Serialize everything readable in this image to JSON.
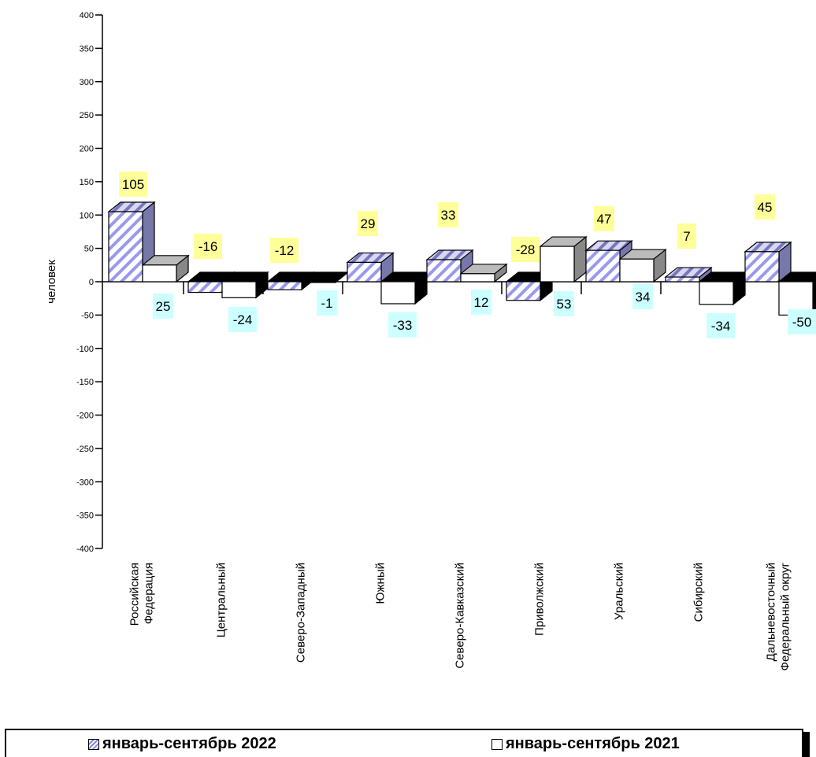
{
  "chart_data": {
    "type": "bar",
    "ylabel": "человек",
    "ylim": [
      -400,
      400
    ],
    "yticks": [
      "400",
      "350",
      "300",
      "250",
      "200",
      "150",
      "100",
      "50",
      "0",
      "-50",
      "-100",
      "-150",
      "-200",
      "-250",
      "-300",
      "-350",
      "-400"
    ],
    "categories": [
      [
        "Российская",
        "Федерация"
      ],
      [
        "Центральный"
      ],
      [
        "Северо-Западный"
      ],
      [
        "Южный"
      ],
      [
        "Северо-Кавказский"
      ],
      [
        "Приволжский"
      ],
      [
        "Уральский"
      ],
      [
        "Сибирский"
      ],
      [
        "Дальневосточный",
        "Федеральный округ"
      ]
    ],
    "series": [
      {
        "name": "январь-сентябрь 2022",
        "values": [
          105,
          -16,
          -12,
          29,
          33,
          -28,
          47,
          7,
          45
        ],
        "label_bg": "#ffff99",
        "fill": "hatched-blue"
      },
      {
        "name": "январь-сентябрь 2021",
        "values": [
          25,
          -24,
          -1,
          -33,
          12,
          53,
          34,
          -34,
          -50
        ],
        "label_bg": "#ccffff",
        "fill": "#ffffff"
      }
    ],
    "legend_position": "bottom",
    "grid": false
  },
  "legend": {
    "item1": "январь-сентябрь 2022",
    "item2": "январь-сентябрь 2021"
  }
}
